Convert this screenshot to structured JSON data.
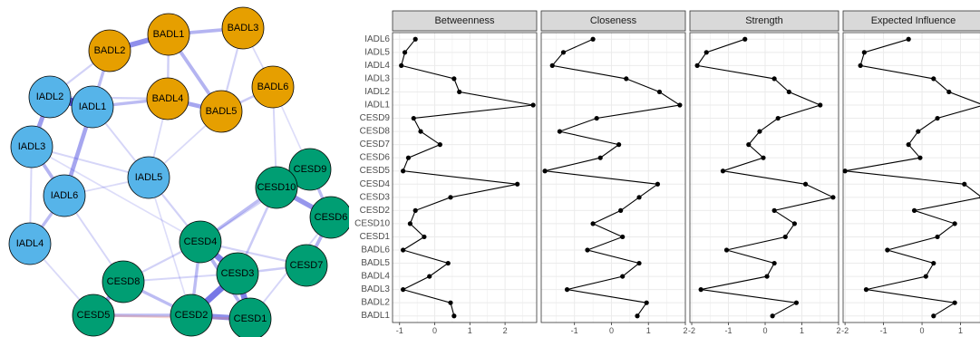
{
  "colors": {
    "badl": "#E69F00",
    "iadl": "#56B4E9",
    "cesd": "#009E73",
    "edge_positive": "#4444DD",
    "edge_negative": "#E07060",
    "strip_fill": "#D9D9D9",
    "grid": "#EBEBEB"
  },
  "network": {
    "nodes": [
      {
        "id": "BADL1",
        "label": "BADL1",
        "group": "badl"
      },
      {
        "id": "BADL2",
        "label": "BADL2",
        "group": "badl"
      },
      {
        "id": "BADL3",
        "label": "BADL3",
        "group": "badl"
      },
      {
        "id": "BADL4",
        "label": "BADL4",
        "group": "badl"
      },
      {
        "id": "BADL5",
        "label": "BADL5",
        "group": "badl"
      },
      {
        "id": "BADL6",
        "label": "BADL6",
        "group": "badl"
      },
      {
        "id": "IADL1",
        "label": "IADL1",
        "group": "iadl"
      },
      {
        "id": "IADL2",
        "label": "IADL2",
        "group": "iadl"
      },
      {
        "id": "IADL3",
        "label": "IADL3",
        "group": "iadl"
      },
      {
        "id": "IADL4",
        "label": "IADL4",
        "group": "iadl"
      },
      {
        "id": "IADL5",
        "label": "IADL5",
        "group": "iadl"
      },
      {
        "id": "IADL6",
        "label": "IADL6",
        "group": "iadl"
      },
      {
        "id": "CESD1",
        "label": "CESD1",
        "group": "cesd"
      },
      {
        "id": "CESD2",
        "label": "CESD2",
        "group": "cesd"
      },
      {
        "id": "CESD3",
        "label": "CESD3",
        "group": "cesd"
      },
      {
        "id": "CESD4",
        "label": "CESD4",
        "group": "cesd"
      },
      {
        "id": "CESD5",
        "label": "CESD5",
        "group": "cesd"
      },
      {
        "id": "CESD6",
        "label": "CESD6",
        "group": "cesd"
      },
      {
        "id": "CESD7",
        "label": "CESD7",
        "group": "cesd"
      },
      {
        "id": "CESD8",
        "label": "CESD8",
        "group": "cesd"
      },
      {
        "id": "CESD9",
        "label": "CESD9",
        "group": "cesd"
      },
      {
        "id": "CESD10",
        "label": "CESD10",
        "group": "cesd"
      }
    ],
    "edges": [
      {
        "from": "IADL2",
        "to": "IADL1",
        "weight": 1.0,
        "sign": "pos"
      },
      {
        "from": "BADL2",
        "to": "BADL1",
        "weight": 0.6,
        "sign": "pos"
      },
      {
        "from": "BADL1",
        "to": "BADL3",
        "weight": 0.35,
        "sign": "pos"
      },
      {
        "from": "BADL1",
        "to": "BADL5",
        "weight": 0.35,
        "sign": "pos"
      },
      {
        "from": "BADL4",
        "to": "BADL5",
        "weight": 0.45,
        "sign": "pos"
      },
      {
        "from": "BADL2",
        "to": "IADL1",
        "weight": 0.3,
        "sign": "pos"
      },
      {
        "from": "IADL1",
        "to": "BADL4",
        "weight": 0.3,
        "sign": "pos"
      },
      {
        "from": "IADL2",
        "to": "IADL3",
        "weight": 0.5,
        "sign": "pos"
      },
      {
        "from": "IADL1",
        "to": "IADL6",
        "weight": 0.45,
        "sign": "pos"
      },
      {
        "from": "IADL3",
        "to": "IADL6",
        "weight": 0.35,
        "sign": "pos"
      },
      {
        "from": "IADL6",
        "to": "IADL4",
        "weight": 0.3,
        "sign": "pos"
      },
      {
        "from": "BADL5",
        "to": "BADL6",
        "weight": 0.2,
        "sign": "pos"
      },
      {
        "from": "CESD10",
        "to": "CESD9",
        "weight": 0.75,
        "sign": "pos"
      },
      {
        "from": "CESD10",
        "to": "CESD6",
        "weight": 0.55,
        "sign": "pos"
      },
      {
        "from": "CESD4",
        "to": "CESD3",
        "weight": 0.7,
        "sign": "pos"
      },
      {
        "from": "CESD3",
        "to": "CESD2",
        "weight": 0.75,
        "sign": "pos"
      },
      {
        "from": "CESD3",
        "to": "CESD1",
        "weight": 0.7,
        "sign": "pos"
      },
      {
        "from": "CESD2",
        "to": "CESD1",
        "weight": 0.6,
        "sign": "pos"
      },
      {
        "from": "CESD4",
        "to": "CESD1",
        "weight": 0.35,
        "sign": "pos"
      },
      {
        "from": "CESD8",
        "to": "CESD5",
        "weight": 0.45,
        "sign": "pos"
      },
      {
        "from": "CESD8",
        "to": "CESD2",
        "weight": 0.3,
        "sign": "pos"
      },
      {
        "from": "CESD6",
        "to": "CESD7",
        "weight": 0.35,
        "sign": "pos"
      },
      {
        "from": "CESD4",
        "to": "CESD10",
        "weight": 0.3,
        "sign": "pos"
      },
      {
        "from": "CESD4",
        "to": "CESD2",
        "weight": 0.3,
        "sign": "pos"
      },
      {
        "from": "CESD5",
        "to": "CESD2",
        "weight": 0.3,
        "sign": "pos"
      },
      {
        "from": "CESD9",
        "to": "CESD6",
        "weight": 0.3,
        "sign": "pos"
      },
      {
        "from": "CESD5",
        "to": "CESD1",
        "weight": 0.2,
        "sign": "neg"
      },
      {
        "from": "IADL5",
        "to": "CESD4",
        "weight": 0.15,
        "sign": "pos"
      },
      {
        "from": "IADL3",
        "to": "IADL5",
        "weight": 0.12,
        "sign": "pos"
      },
      {
        "from": "IADL6",
        "to": "CESD8",
        "weight": 0.12,
        "sign": "pos"
      },
      {
        "from": "BADL4",
        "to": "IADL5",
        "weight": 0.1,
        "sign": "pos"
      },
      {
        "from": "IADL4",
        "to": "CESD5",
        "weight": 0.1,
        "sign": "pos"
      },
      {
        "from": "BADL6",
        "to": "CESD10",
        "weight": 0.12,
        "sign": "pos"
      },
      {
        "from": "IADL1",
        "to": "IADL5",
        "weight": 0.12,
        "sign": "pos"
      },
      {
        "from": "IADL2",
        "to": "BADL4",
        "weight": 0.15,
        "sign": "pos"
      },
      {
        "from": "CESD7",
        "to": "CESD3",
        "weight": 0.2,
        "sign": "pos"
      },
      {
        "from": "CESD10",
        "to": "CESD3",
        "weight": 0.2,
        "sign": "pos"
      },
      {
        "from": "CESD4",
        "to": "CESD7",
        "weight": 0.15,
        "sign": "pos"
      },
      {
        "from": "CESD9",
        "to": "CESD4",
        "weight": 0.15,
        "sign": "pos"
      },
      {
        "from": "CESD6",
        "to": "CESD1",
        "weight": 0.12,
        "sign": "pos"
      },
      {
        "from": "IADL3",
        "to": "CESD4",
        "weight": 0.08,
        "sign": "pos"
      },
      {
        "from": "BADL3",
        "to": "BADL5",
        "weight": 0.15,
        "sign": "pos"
      },
      {
        "from": "BADL2",
        "to": "IADL2",
        "weight": 0.15,
        "sign": "pos"
      },
      {
        "from": "IADL4",
        "to": "IADL3",
        "weight": 0.12,
        "sign": "pos"
      },
      {
        "from": "BADL6",
        "to": "BADL3",
        "weight": 0.1,
        "sign": "pos"
      },
      {
        "from": "BADL1",
        "to": "BADL4",
        "weight": 0.18,
        "sign": "pos"
      },
      {
        "from": "IADL5",
        "to": "CESD2",
        "weight": 0.08,
        "sign": "pos"
      },
      {
        "from": "IADL6",
        "to": "IADL5",
        "weight": 0.1,
        "sign": "pos"
      },
      {
        "from": "CESD8",
        "to": "CESD4",
        "weight": 0.15,
        "sign": "pos"
      },
      {
        "from": "CESD8",
        "to": "CESD3",
        "weight": 0.12,
        "sign": "pos"
      },
      {
        "from": "BADL5",
        "to": "IADL5",
        "weight": 0.1,
        "sign": "pos"
      },
      {
        "from": "BADL6",
        "to": "CESD9",
        "weight": 0.08,
        "sign": "pos"
      }
    ]
  },
  "chart_data": {
    "type": "line",
    "orientation": "horizontal",
    "title": "",
    "categories": [
      "BADL1",
      "BADL2",
      "BADL3",
      "BADL4",
      "BADL5",
      "BADL6",
      "CESD1",
      "CESD10",
      "CESD2",
      "CESD3",
      "CESD4",
      "CESD5",
      "CESD6",
      "CESD7",
      "CESD8",
      "CESD9",
      "IADL1",
      "IADL2",
      "IADL3",
      "IADL4",
      "IADL5",
      "IADL6"
    ],
    "facets": [
      {
        "name": "Betweenness",
        "xlim": [
          -1.2,
          2.9
        ],
        "ticks": [
          -1,
          0,
          1,
          2
        ],
        "tick_labels": [
          "-1",
          "0",
          "1",
          "2"
        ],
        "values": [
          0.55,
          0.45,
          -0.9,
          -0.15,
          0.38,
          -0.9,
          -0.3,
          -0.7,
          -0.55,
          0.45,
          2.35,
          -0.9,
          -0.75,
          0.15,
          -0.4,
          -0.6,
          2.8,
          0.7,
          0.55,
          -0.95,
          -0.85,
          -0.55
        ]
      },
      {
        "name": "Closeness",
        "xlim": [
          -1.9,
          2.0
        ],
        "ticks": [
          -1,
          0,
          1,
          2
        ],
        "tick_labels": [
          "-1",
          "0",
          "1",
          "2"
        ],
        "values": [
          0.7,
          0.95,
          -1.2,
          0.3,
          0.75,
          -0.65,
          0.3,
          -0.5,
          0.25,
          0.75,
          1.25,
          -1.8,
          -0.3,
          0.2,
          -1.4,
          -0.4,
          1.85,
          1.3,
          0.4,
          -1.6,
          -1.3,
          -0.5
        ]
      },
      {
        "name": "Strength",
        "xlim": [
          -2.05,
          2.0
        ],
        "ticks": [
          -2,
          -1,
          0,
          1,
          2
        ],
        "tick_labels": [
          "-2",
          "-1",
          "0",
          "1",
          "2"
        ],
        "values": [
          0.2,
          0.85,
          -1.75,
          0.05,
          0.25,
          -1.05,
          0.55,
          0.8,
          0.25,
          1.85,
          1.1,
          -1.15,
          -0.05,
          -0.45,
          -0.15,
          0.35,
          1.5,
          0.65,
          0.25,
          -1.85,
          -1.6,
          -0.55
        ]
      },
      {
        "name": "Expected Influence",
        "xlim": [
          -2.05,
          1.6
        ],
        "ticks": [
          -2,
          -1,
          0,
          1
        ],
        "tick_labels": [
          "-2",
          "-1",
          "0",
          "1"
        ],
        "values": [
          0.3,
          0.85,
          -1.45,
          0.1,
          0.3,
          -0.9,
          0.4,
          0.85,
          -0.2,
          1.55,
          1.1,
          -2.0,
          -0.05,
          -0.35,
          -0.1,
          0.4,
          1.6,
          0.7,
          0.3,
          -1.6,
          -1.5,
          -0.35
        ]
      }
    ]
  }
}
